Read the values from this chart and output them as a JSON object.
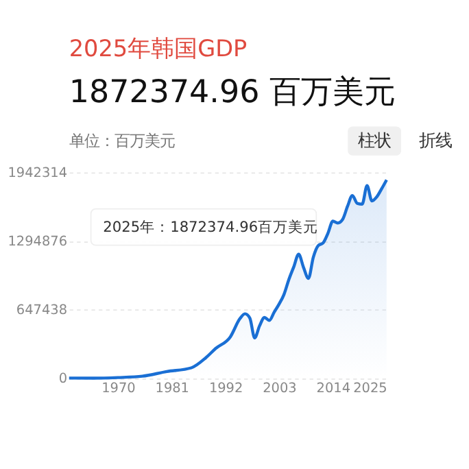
{
  "chart_data": {
    "type": "area",
    "title": "2025年韩国GDP",
    "subtitle": "1872374.96 百万美元",
    "ylabel": "单位：百万美元",
    "annotations": [
      "柱状",
      "折线",
      "2025年：1872374.96百万美元"
    ],
    "x": [
      1960,
      1965,
      1970,
      1975,
      1980,
      1985,
      1988,
      1990,
      1993,
      1995,
      1996,
      1997,
      1998,
      1999,
      2000,
      2001,
      2002,
      2003,
      2004,
      2005,
      2006,
      2007,
      2008,
      2009,
      2010,
      2011,
      2012,
      2013,
      2014,
      2015,
      2016,
      2017,
      2018,
      2019,
      2020,
      2021,
      2022,
      2023,
      2024,
      2025
    ],
    "series": [
      {
        "color": "#1a6fd4",
        "values": [
          4000,
          3000,
          9000,
          21700,
          65400,
          100300,
          196000,
          283000,
          392000,
          566000,
          610000,
          570000,
          383000,
          497000,
          576000,
          548000,
          627000,
          702000,
          793000,
          934000,
          1053000,
          1172000,
          1047000,
          944000,
          1144000,
          1253000,
          1278000,
          1370000,
          1484000,
          1466000,
          1500000,
          1623000,
          1725000,
          1651000,
          1644000,
          1818000,
          1674000,
          1713000,
          1790000,
          1872374.96
        ]
      }
    ],
    "xlim": [
      1960,
      2025
    ],
    "xticks": [
      1970,
      1981,
      1992,
      2003,
      2014,
      2025
    ],
    "ylim": [
      0,
      1942314
    ],
    "yticks": [
      0,
      647438,
      1294876,
      1942314
    ],
    "grid": "y",
    "marker": "none",
    "line_style": "solid"
  }
}
